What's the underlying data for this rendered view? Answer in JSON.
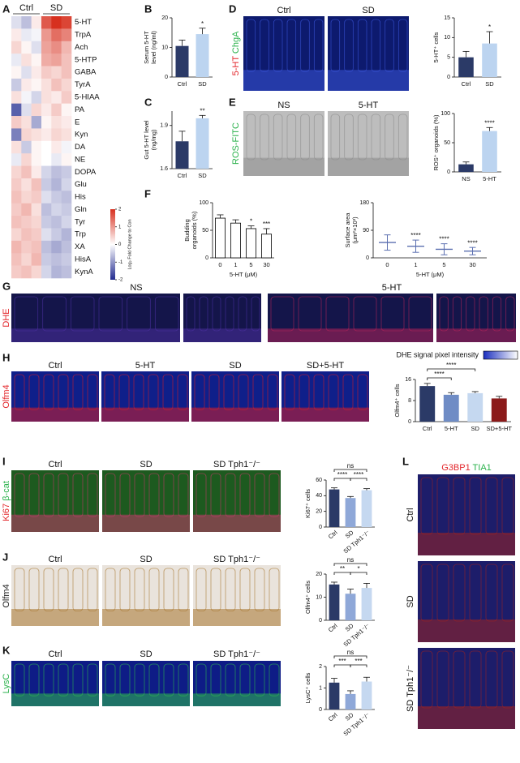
{
  "panel_labels": [
    "A",
    "B",
    "C",
    "D",
    "E",
    "F",
    "G",
    "H",
    "I",
    "J",
    "K",
    "L"
  ],
  "images": {
    "D": {
      "columns": [
        "Ctrl",
        "SD"
      ],
      "stain": [
        {
          "text": "5-HT",
          "color": "#e3262b"
        },
        {
          "text": " ChgA",
          "color": "#2bb24c"
        }
      ]
    },
    "E": {
      "columns": [
        "NS",
        "5-HT"
      ],
      "stain": [
        {
          "text": "ROS-FITC",
          "color": "#2bb24c"
        }
      ]
    },
    "G": {
      "columns": [
        "NS",
        "5-HT"
      ],
      "stain": [
        {
          "text": "DHE",
          "color": "#e3262b"
        }
      ],
      "scale_label": "DHE signal pixel intensity"
    },
    "H": {
      "columns": [
        "Ctrl",
        "5-HT",
        "SD",
        "SD+5-HT"
      ],
      "stain": [
        {
          "text": "Olfm4",
          "color": "#e3262b"
        }
      ]
    },
    "I": {
      "columns": [
        "Ctrl",
        "SD",
        "SD Tph1⁻/⁻"
      ],
      "stain": [
        {
          "text": "Ki67",
          "color": "#e3262b"
        },
        {
          "text": " β-cat",
          "color": "#2bb24c"
        }
      ]
    },
    "J": {
      "columns": [
        "Ctrl",
        "SD",
        "SD Tph1⁻/⁻"
      ],
      "stain": [
        {
          "text": "Olfm4",
          "color": "#222222"
        }
      ]
    },
    "K": {
      "columns": [
        "Ctrl",
        "SD",
        "SD Tph1⁻/⁻"
      ],
      "stain": [
        {
          "text": "LysC",
          "color": "#2bb24c"
        }
      ]
    },
    "L": {
      "columns": [
        "Ctrl",
        "SD",
        "SD Tph1⁻/⁻"
      ],
      "stain": [
        {
          "text": "G3BP1",
          "color": "#e3262b"
        },
        {
          "text": " TIA1",
          "color": "#2bb24c"
        }
      ]
    }
  },
  "chart_data": [
    {
      "type": "heatmap",
      "groups": [
        "Ctrl",
        "SD"
      ],
      "rows": [
        "5-HT",
        "TrpA",
        "Ach",
        "5-HTP",
        "GABA",
        "TyrA",
        "5-HIAA",
        "PA",
        "E",
        "Kyn",
        "DA",
        "NE",
        "DOPA",
        "Glu",
        "His",
        "Gln",
        "Tyr",
        "Trp",
        "XA",
        "HisA",
        "KynA"
      ],
      "highlighted": [
        "5-HT",
        "TrpA",
        "5-HTP",
        "Kyn",
        "Trp"
      ],
      "highlight_color": "#3b7fc4",
      "matrix": [
        [
          -0.3,
          -0.6,
          0.2,
          1.6,
          2.0,
          1.8
        ],
        [
          0.2,
          -0.2,
          -0.1,
          1.0,
          1.4,
          1.2
        ],
        [
          0.4,
          0.1,
          -0.3,
          0.9,
          1.1,
          0.7
        ],
        [
          -0.2,
          0.3,
          0.1,
          0.8,
          0.9,
          0.6
        ],
        [
          0.1,
          -0.3,
          0.2,
          0.5,
          0.4,
          0.6
        ],
        [
          -0.5,
          0.2,
          0.1,
          0.3,
          0.6,
          0.4
        ],
        [
          0.3,
          -0.1,
          -0.4,
          0.3,
          0.2,
          0.5
        ],
        [
          -1.5,
          -0.3,
          0.4,
          0.2,
          0.5,
          0.1
        ],
        [
          0.5,
          0.3,
          -0.8,
          0.1,
          0.3,
          0.2
        ],
        [
          -1.2,
          0.4,
          0.3,
          0.2,
          0.4,
          0.3
        ],
        [
          0.3,
          -0.5,
          0.1,
          0.0,
          0.2,
          -0.1
        ],
        [
          -0.2,
          0.4,
          0.1,
          0.0,
          -0.2,
          0.1
        ],
        [
          0.4,
          0.6,
          0.2,
          -0.4,
          -0.6,
          -0.5
        ],
        [
          0.5,
          0.3,
          0.6,
          -0.5,
          -0.7,
          -0.4
        ],
        [
          0.6,
          0.4,
          0.5,
          -0.3,
          -0.5,
          -0.6
        ],
        [
          0.5,
          0.7,
          0.3,
          -0.6,
          -0.4,
          -0.5
        ],
        [
          0.6,
          0.5,
          0.4,
          -0.5,
          -0.6,
          -0.4
        ],
        [
          0.4,
          0.6,
          0.5,
          -0.3,
          -0.5,
          -0.7
        ],
        [
          0.7,
          0.5,
          0.6,
          -0.6,
          -0.8,
          -0.6
        ],
        [
          0.6,
          0.4,
          0.7,
          -0.5,
          -0.6,
          -0.5
        ],
        [
          0.5,
          0.6,
          0.4,
          -0.4,
          -0.7,
          -0.6
        ]
      ],
      "colorscale": [
        "#222b8f",
        "#ffffff",
        "#d7301f"
      ],
      "clim": [
        -2,
        2
      ],
      "cticks": [
        -2,
        -1,
        0,
        1,
        2
      ],
      "colorbar_label": "Log₂ Fold Change to Con"
    },
    {
      "type": "bar",
      "ylabel": [
        "Serum 5-HT",
        "level (ng/ml)"
      ],
      "categories": [
        "Ctrl",
        "SD"
      ],
      "values": [
        10.5,
        14.5
      ],
      "errors": [
        2,
        2
      ],
      "stars": [
        null,
        "*"
      ],
      "colors": [
        "#2b3a67",
        "#bcd4f0"
      ],
      "ylim": [
        0,
        20
      ],
      "yticks": [
        0,
        10,
        20
      ]
    },
    {
      "type": "bar",
      "ylabel": [
        "Gut 5-HT level",
        "(ng/mg)"
      ],
      "categories": [
        "Ctrl",
        "SD"
      ],
      "values": [
        1.79,
        1.95
      ],
      "errors": [
        0.07,
        0.02
      ],
      "stars": [
        null,
        "**"
      ],
      "colors": [
        "#2b3a67",
        "#bcd4f0"
      ],
      "ylim": [
        1.6,
        2.0
      ],
      "yticks": [
        1.6,
        1.9
      ]
    },
    {
      "type": "bar",
      "ylabel": [
        "5-HT⁺ cells"
      ],
      "categories": [
        "Ctrl",
        "SD"
      ],
      "values": [
        5,
        8.5
      ],
      "errors": [
        1.5,
        3
      ],
      "stars": [
        null,
        "*"
      ],
      "colors": [
        "#2b3a67",
        "#bcd4f0"
      ],
      "ylim": [
        0,
        15
      ],
      "yticks": [
        0,
        5,
        10,
        15
      ]
    },
    {
      "type": "bar",
      "ylabel": [
        "ROS⁺ organoids (%)"
      ],
      "categories": [
        "NS",
        "5-HT"
      ],
      "values": [
        13,
        70
      ],
      "errors": [
        4,
        6
      ],
      "stars": [
        null,
        "****"
      ],
      "colors": [
        "#2b3a67",
        "#bcd4f0"
      ],
      "ylim": [
        0,
        100
      ],
      "yticks": [
        0,
        50,
        100
      ]
    },
    {
      "type": "bar",
      "ylabel": [
        "Budding",
        "organoids (%)"
      ],
      "xlabel": "5-HT (μM)",
      "categories": [
        "0",
        "1",
        "5",
        "30"
      ],
      "values": [
        72,
        63,
        53,
        43
      ],
      "errors": [
        6,
        6,
        5,
        10
      ],
      "stars": [
        null,
        null,
        "*",
        "***"
      ],
      "color": "#ffffff",
      "edgecolor": "#000000",
      "ylim": [
        0,
        100
      ],
      "yticks": [
        0,
        50,
        100
      ]
    },
    {
      "type": "dot",
      "ylabel": [
        "Surface area",
        "(μm²×10³)"
      ],
      "xlabel": "5-HT (μM)",
      "categories": [
        "0",
        "1",
        "5",
        "30"
      ],
      "values": [
        50,
        38,
        28,
        22
      ],
      "errors": [
        25,
        20,
        18,
        12
      ],
      "stars": [
        null,
        "****",
        "****",
        "****"
      ],
      "color": "#5b6fb0",
      "ylim": [
        0,
        180
      ],
      "yticks": [
        0,
        90,
        180
      ]
    },
    {
      "type": "bar",
      "ylabel": [
        "Olfm4⁺ cells"
      ],
      "categories": [
        "Ctrl",
        "5-HT",
        "SD",
        "SD+5-HT"
      ],
      "values": [
        13.5,
        10.2,
        10.8,
        8.8
      ],
      "errors": [
        1,
        0.8,
        0.6,
        0.8
      ],
      "colors": [
        "#2b3a67",
        "#6f8cc5",
        "#c5d8f0",
        "#8b1a1a"
      ],
      "ylim": [
        0,
        16
      ],
      "yticks": [
        0,
        8,
        16
      ],
      "comparisons": [
        {
          "pair": [
            "Ctrl",
            "5-HT"
          ],
          "label": "****"
        },
        {
          "pair": [
            "Ctrl",
            "SD"
          ],
          "label": "****"
        }
      ]
    },
    {
      "type": "bar",
      "ylabel": [
        "Ki67⁺ cells"
      ],
      "categories": [
        "Ctrl",
        "SD",
        "SD Tph1⁻/⁻"
      ],
      "values": [
        48,
        37,
        47
      ],
      "errors": [
        2,
        2,
        2
      ],
      "colors": [
        "#2b3a67",
        "#8fa8d8",
        "#c5d8f0"
      ],
      "ylim": [
        0,
        60
      ],
      "yticks": [
        0,
        20,
        40,
        60
      ],
      "rotate_labels": true,
      "comparisons": [
        {
          "pair": [
            "Ctrl",
            "SD"
          ],
          "label": "****"
        },
        {
          "pair": [
            "SD",
            "SD Tph1⁻/⁻"
          ],
          "label": "****"
        },
        {
          "pair": [
            "Ctrl",
            "SD Tph1⁻/⁻"
          ],
          "label": "ns"
        }
      ]
    },
    {
      "type": "bar",
      "ylabel": [
        "Olfm4⁺ cells"
      ],
      "categories": [
        "Ctrl",
        "SD",
        "SD Tph1⁻/⁻"
      ],
      "values": [
        15.5,
        11.5,
        14
      ],
      "errors": [
        1,
        2,
        2
      ],
      "colors": [
        "#2b3a67",
        "#8fa8d8",
        "#c5d8f0"
      ],
      "ylim": [
        0,
        20
      ],
      "yticks": [
        0,
        10,
        20
      ],
      "rotate_labels": true,
      "comparisons": [
        {
          "pair": [
            "Ctrl",
            "SD"
          ],
          "label": "**"
        },
        {
          "pair": [
            "SD",
            "SD Tph1⁻/⁻"
          ],
          "label": "*"
        },
        {
          "pair": [
            "Ctrl",
            "SD Tph1⁻/⁻"
          ],
          "label": "ns"
        }
      ]
    },
    {
      "type": "bar",
      "ylabel": [
        "LysC⁺ cells"
      ],
      "categories": [
        "Ctrl",
        "SD",
        "SD Tph1⁻/⁻"
      ],
      "values": [
        1.25,
        0.72,
        1.3
      ],
      "errors": [
        0.2,
        0.15,
        0.2
      ],
      "colors": [
        "#2b3a67",
        "#8fa8d8",
        "#c5d8f0"
      ],
      "ylim": [
        0,
        2
      ],
      "yticks": [
        0,
        1,
        2
      ],
      "rotate_labels": true,
      "comparisons": [
        {
          "pair": [
            "Ctrl",
            "SD"
          ],
          "label": "***"
        },
        {
          "pair": [
            "SD",
            "SD Tph1⁻/⁻"
          ],
          "label": "***"
        },
        {
          "pair": [
            "Ctrl",
            "SD Tph1⁻/⁻"
          ],
          "label": "ns"
        }
      ]
    }
  ]
}
